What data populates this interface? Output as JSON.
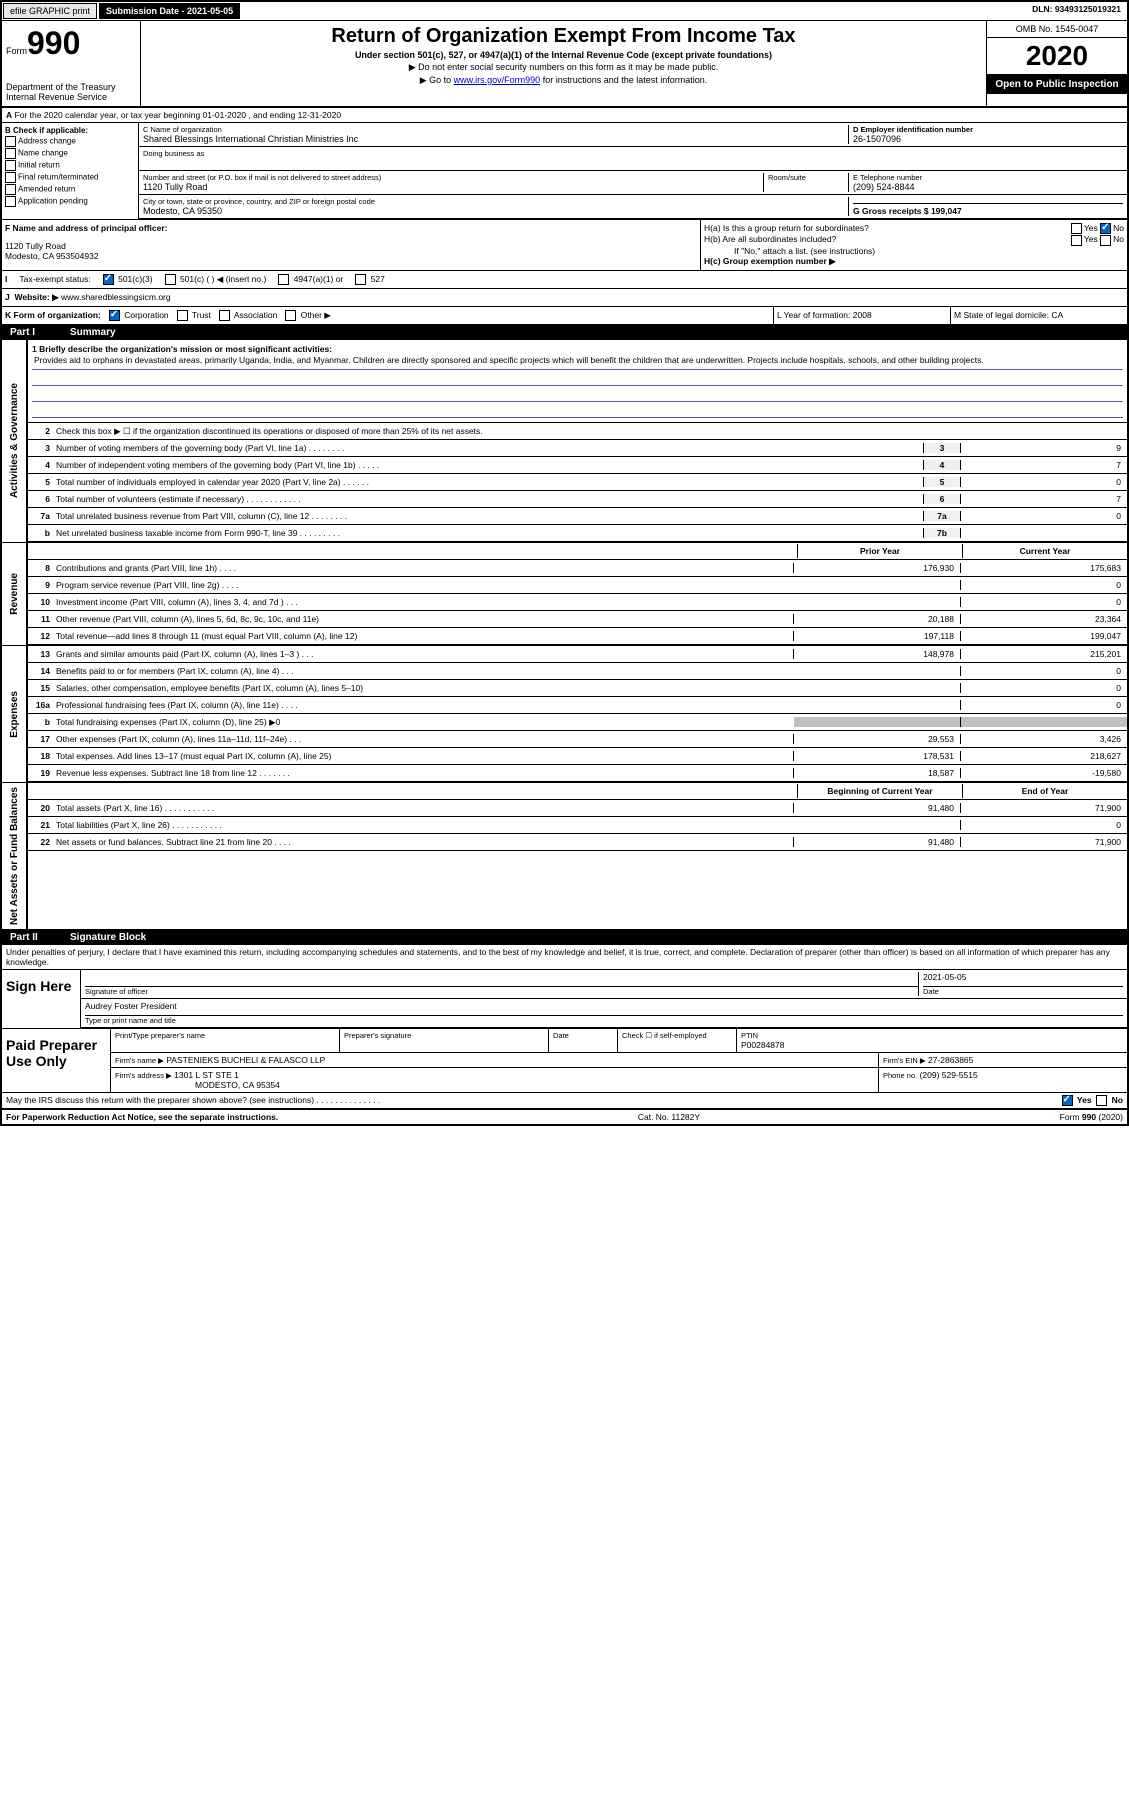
{
  "top_bar": {
    "efile": "efile GRAPHIC print",
    "submission_label": "Submission Date - 2021-05-05",
    "dln_label": "DLN: 93493125019321"
  },
  "header": {
    "form_label": "Form",
    "form_number": "990",
    "dept": "Department of the Treasury\nInternal Revenue Service",
    "title": "Return of Organization Exempt From Income Tax",
    "subtitle": "Under section 501(c), 527, or 4947(a)(1) of the Internal Revenue Code (except private foundations)",
    "inst1": "▶ Do not enter social security numbers on this form as it may be made public.",
    "inst2_pre": "▶ Go to ",
    "inst2_link": "www.irs.gov/Form990",
    "inst2_post": " for instructions and the latest information.",
    "omb": "OMB No. 1545-0047",
    "year": "2020",
    "open_public": "Open to Public Inspection"
  },
  "section_a": {
    "period": "For the 2020 calendar year, or tax year beginning 01-01-2020    , and ending 12-31-2020",
    "b_label": "B Check if applicable:",
    "b_items": [
      "Address change",
      "Name change",
      "Initial return",
      "Final return/terminated",
      "Amended return",
      "Application pending"
    ],
    "c_label": "C Name of organization",
    "c_name": "Shared Blessings International Christian Ministries Inc",
    "dba_label": "Doing business as",
    "addr_label": "Number and street (or P.O. box if mail is not delivered to street address)",
    "room_label": "Room/suite",
    "addr": "1120 Tully Road",
    "city_label": "City or town, state or province, country, and ZIP or foreign postal code",
    "city": "Modesto, CA  95350",
    "d_label": "D Employer identification number",
    "d_ein": "26-1507096",
    "e_label": "E Telephone number",
    "e_phone": "(209) 524-8844",
    "g_label": "G Gross receipts $ 199,047",
    "f_label": "F  Name and address of principal officer:",
    "f_addr": "1120 Tully Road\nModesto, CA  953504932",
    "ha_label": "H(a)  Is this a group return for subordinates?",
    "hb_label": "H(b)  Are all subordinates included?",
    "hb_note": "If \"No,\" attach a list. (see instructions)",
    "hc_label": "H(c)  Group exemption number ▶",
    "i_label": "Tax-exempt status:",
    "i_501c3": "501(c)(3)",
    "i_501c": "501(c) (   ) ◀ (insert no.)",
    "i_4947": "4947(a)(1) or",
    "i_527": "527",
    "j_label": "J",
    "j_website_label": "Website: ▶",
    "j_website": "www.sharedblessingsicm.org",
    "k_label": "K Form of organization:",
    "k_items": [
      "Corporation",
      "Trust",
      "Association",
      "Other ▶"
    ],
    "l_label": "L Year of formation: 2008",
    "m_label": "M State of legal domicile: CA"
  },
  "part1": {
    "header": "Part I",
    "title": "Summary",
    "line1_label": "1  Briefly describe the organization's mission or most significant activities:",
    "mission": "Provides aid to orphans in devastated areas, primarily Uganda, India, and Myanmar. Children are directly sponsored and specific projects which will benefit the children that are underwritten. Projects include hospitals, schools, and other building projects.",
    "line2": "Check this box ▶ ☐  if the organization discontinued its operations or disposed of more than 25% of its net assets.",
    "sidebar_gov": "Activities & Governance",
    "sidebar_rev": "Revenue",
    "sidebar_exp": "Expenses",
    "sidebar_net": "Net Assets or Fund Balances",
    "rows_gov": [
      {
        "n": "3",
        "t": "Number of voting members of the governing body (Part VI, line 1a)   .    .    .    .    .    .    .    .",
        "box": "3",
        "v": "9"
      },
      {
        "n": "4",
        "t": "Number of independent voting members of the governing body (Part VI, line 1b)   .    .    .    .    .",
        "box": "4",
        "v": "7"
      },
      {
        "n": "5",
        "t": "Total number of individuals employed in calendar year 2020 (Part V, line 2a)   .    .    .    .    .    .",
        "box": "5",
        "v": "0"
      },
      {
        "n": "6",
        "t": "Total number of volunteers (estimate if necessary)    .    .    .    .    .    .    .    .    .    .    .    .",
        "box": "6",
        "v": "7"
      },
      {
        "n": "7a",
        "t": "Total unrelated business revenue from Part VIII, column (C), line 12   .    .    .    .    .    .    .    .",
        "box": "7a",
        "v": "0"
      },
      {
        "n": "b",
        "t": "Net unrelated business taxable income from Form 990-T, line 39    .    .    .    .    .    .    .    .    .",
        "box": "7b",
        "v": ""
      }
    ],
    "col_prior": "Prior Year",
    "col_current": "Current Year",
    "rows_rev": [
      {
        "n": "8",
        "t": "Contributions and grants (Part VIII, line 1h)    .    .    .    .",
        "p": "176,930",
        "c": "175,683"
      },
      {
        "n": "9",
        "t": "Program service revenue (Part VIII, line 2g)    .    .    .    .",
        "p": "",
        "c": "0"
      },
      {
        "n": "10",
        "t": "Investment income (Part VIII, column (A), lines 3, 4, and 7d )    .    .    .",
        "p": "",
        "c": "0"
      },
      {
        "n": "11",
        "t": "Other revenue (Part VIII, column (A), lines 5, 6d, 8c, 9c, 10c, and 11e)",
        "p": "20,188",
        "c": "23,364"
      },
      {
        "n": "12",
        "t": "Total revenue—add lines 8 through 11 (must equal Part VIII, column (A), line 12)",
        "p": "197,118",
        "c": "199,047"
      }
    ],
    "rows_exp": [
      {
        "n": "13",
        "t": "Grants and similar amounts paid (Part IX, column (A), lines 1–3 )   .    .    .",
        "p": "148,978",
        "c": "215,201"
      },
      {
        "n": "14",
        "t": "Benefits paid to or for members (Part IX, column (A), line 4)    .    .    .",
        "p": "",
        "c": "0"
      },
      {
        "n": "15",
        "t": "Salaries, other compensation, employee benefits (Part IX, column (A), lines 5–10)",
        "p": "",
        "c": "0"
      },
      {
        "n": "16a",
        "t": "Professional fundraising fees (Part IX, column (A), line 11e)   .    .    .    .",
        "p": "",
        "c": "0"
      },
      {
        "n": "b",
        "t": "Total fundraising expenses (Part IX, column (D), line 25) ▶0",
        "p": "GREY",
        "c": "GREY"
      },
      {
        "n": "17",
        "t": "Other expenses (Part IX, column (A), lines 11a–11d, 11f–24e)    .    .    .",
        "p": "29,553",
        "c": "3,426"
      },
      {
        "n": "18",
        "t": "Total expenses. Add lines 13–17 (must equal Part IX, column (A), line 25)",
        "p": "178,531",
        "c": "218,627"
      },
      {
        "n": "19",
        "t": "Revenue less expenses. Subtract line 18 from line 12  .    .    .    .    .    .    .",
        "p": "18,587",
        "c": "-19,580"
      }
    ],
    "col_begin": "Beginning of Current Year",
    "col_end": "End of Year",
    "rows_net": [
      {
        "n": "20",
        "t": "Total assets (Part X, line 16)   .    .    .    .    .    .    .    .    .    .    .",
        "p": "91,480",
        "c": "71,900"
      },
      {
        "n": "21",
        "t": "Total liabilities (Part X, line 26)   .    .    .    .    .    .    .    .    .    .    .",
        "p": "",
        "c": "0"
      },
      {
        "n": "22",
        "t": "Net assets or fund balances. Subtract line 21 from line 20   .    .    .    .",
        "p": "91,480",
        "c": "71,900"
      }
    ]
  },
  "part2": {
    "header": "Part II",
    "title": "Signature Block",
    "penalty": "Under penalties of perjury, I declare that I have examined this return, including accompanying schedules and statements, and to the best of my knowledge and belief, it is true, correct, and complete. Declaration of preparer (other than officer) is based on all information of which preparer has any knowledge.",
    "sign_here": "Sign Here",
    "sig_officer": "Signature of officer",
    "sig_date_label": "Date",
    "sig_date": "2021-05-05",
    "sig_name": "Audrey Foster  President",
    "sig_name_label": "Type or print name and title",
    "paid_prep": "Paid Preparer Use Only",
    "prep_name_label": "Print/Type preparer's name",
    "prep_sig_label": "Preparer's signature",
    "prep_date_label": "Date",
    "prep_check": "Check ☐ if self-employed",
    "ptin_label": "PTIN",
    "ptin": "P00284878",
    "firm_name_label": "Firm's name      ▶",
    "firm_name": "PASTENIEKS BUCHELI & FALASCO LLP",
    "firm_ein_label": "Firm's EIN ▶",
    "firm_ein": "27-2863865",
    "firm_addr_label": "Firm's address ▶",
    "firm_addr1": "1301 L ST STE 1",
    "firm_addr2": "MODESTO, CA  95354",
    "firm_phone_label": "Phone no.",
    "firm_phone": "(209) 529-5515",
    "discuss": "May the IRS discuss this return with the preparer shown above? (see instructions)    .    .    .    .    .    .    .    .    .    .    .    .    .    .",
    "yes": "Yes",
    "no": "No"
  },
  "footer": {
    "paperwork": "For Paperwork Reduction Act Notice, see the separate instructions.",
    "cat": "Cat. No. 11282Y",
    "form": "Form 990 (2020)"
  }
}
